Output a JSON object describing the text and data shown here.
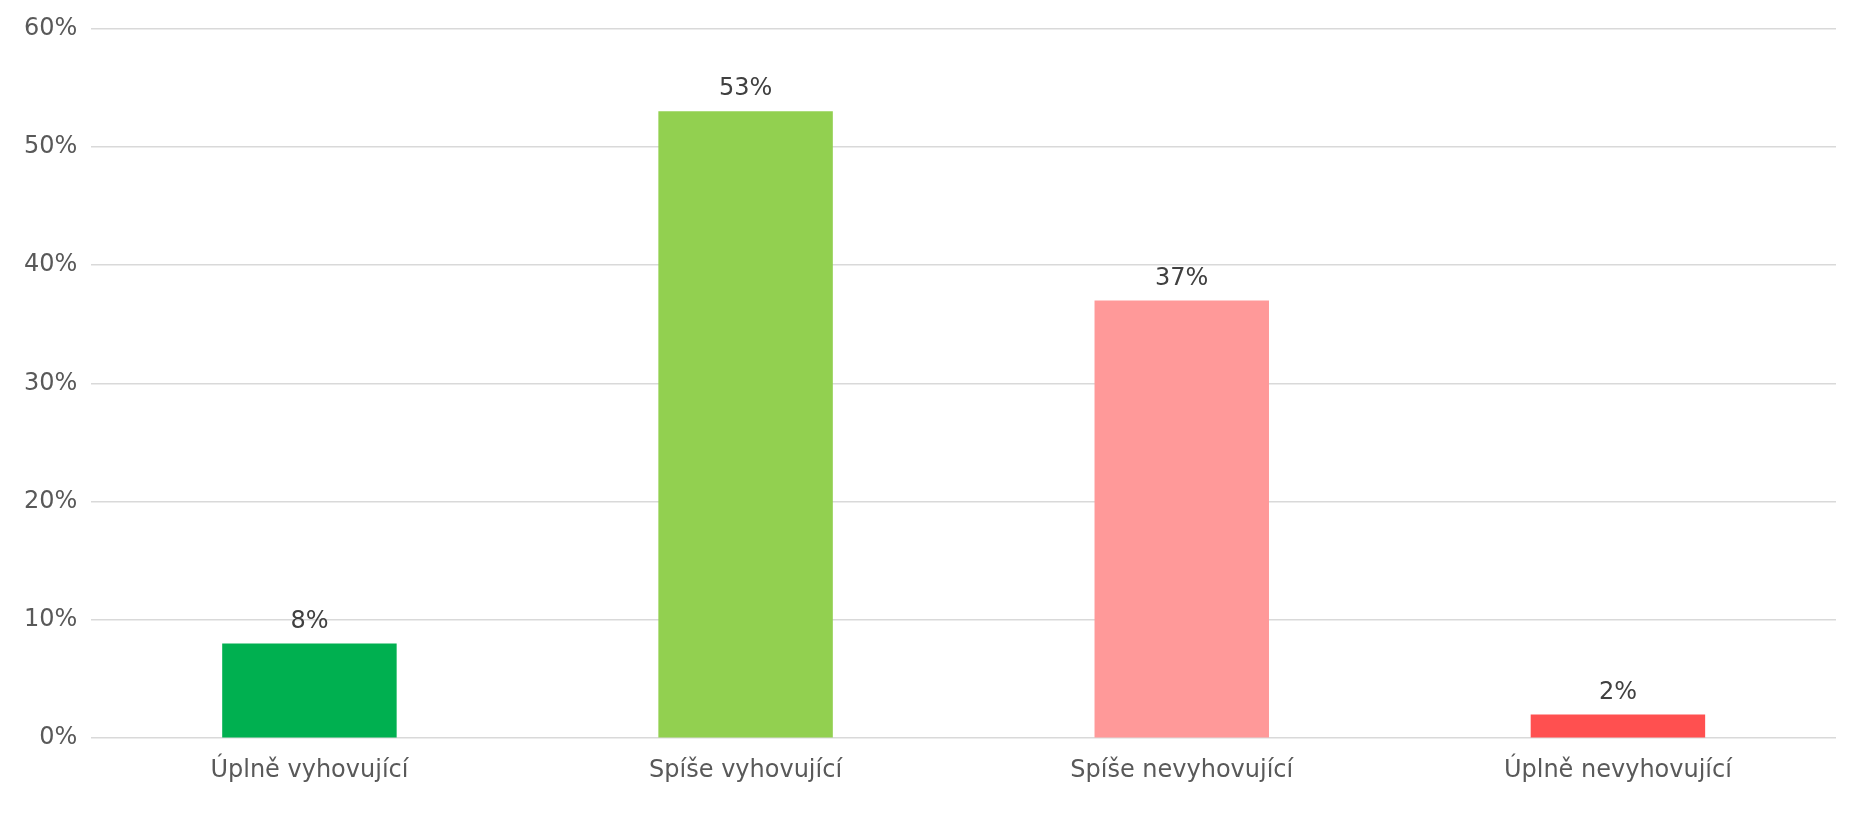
{
  "chart_data": {
    "type": "bar",
    "categories": [
      "Úplně vyhovující",
      "Spíše vyhovující",
      "Spíše nevyhovující",
      "Úplně nevyhovující"
    ],
    "values": [
      8,
      53,
      37,
      2
    ],
    "colors": [
      "#00b050",
      "#92d050",
      "#ff9999",
      "#ff5050"
    ],
    "value_labels": [
      "8%",
      "53%",
      "37%",
      "2%"
    ],
    "ylim": [
      0,
      60
    ],
    "yticks": [
      {
        "value": 0,
        "label": "0%"
      },
      {
        "value": 10,
        "label": "10%"
      },
      {
        "value": 20,
        "label": "20%"
      },
      {
        "value": 30,
        "label": "30%"
      },
      {
        "value": 40,
        "label": "40%"
      },
      {
        "value": 50,
        "label": "50%"
      },
      {
        "value": 60,
        "label": "60%"
      }
    ],
    "grid": "y",
    "legend": false
  }
}
